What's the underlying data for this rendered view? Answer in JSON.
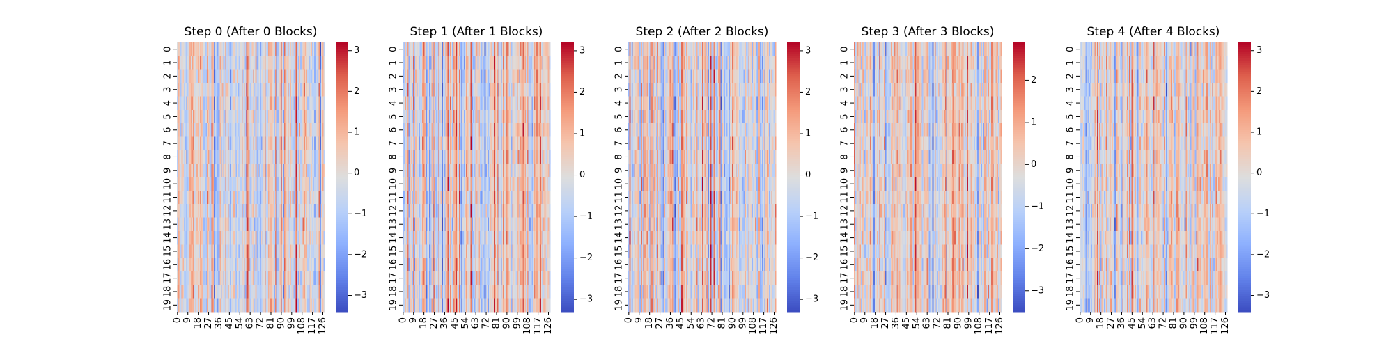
{
  "chart_data": [
    {
      "type": "heatmap",
      "title": "Step 0 (After 0 Blocks)",
      "rows": 20,
      "cols": 128,
      "y_ticklabels": [
        "0",
        "1",
        "2",
        "3",
        "4",
        "5",
        "6",
        "7",
        "8",
        "9",
        "10",
        "11",
        "12",
        "13",
        "14",
        "15",
        "16",
        "17",
        "18",
        "19"
      ],
      "x_ticklabels": [
        "0",
        "9",
        "18",
        "27",
        "36",
        "45",
        "54",
        "63",
        "72",
        "81",
        "90",
        "99",
        "108",
        "117",
        "126"
      ],
      "colormap": "coolwarm",
      "vmin": -3.4,
      "vmax": 3.2,
      "colorbar_ticks": [
        -3,
        -2,
        -1,
        0,
        1,
        2,
        3
      ],
      "colorbar_ticklabels": [
        "−3",
        "−2",
        "−1",
        "0",
        "1",
        "2",
        "3"
      ],
      "seed": 11
    },
    {
      "type": "heatmap",
      "title": "Step 1 (After 1 Blocks)",
      "rows": 20,
      "cols": 128,
      "y_ticklabels": [
        "0",
        "1",
        "2",
        "3",
        "4",
        "5",
        "6",
        "7",
        "8",
        "9",
        "10",
        "11",
        "12",
        "13",
        "14",
        "15",
        "16",
        "17",
        "18",
        "19"
      ],
      "x_ticklabels": [
        "0",
        "9",
        "18",
        "27",
        "36",
        "45",
        "54",
        "63",
        "72",
        "81",
        "90",
        "99",
        "108",
        "117",
        "126"
      ],
      "colormap": "coolwarm",
      "vmin": -3.3,
      "vmax": 3.2,
      "colorbar_ticks": [
        -3,
        -2,
        -1,
        0,
        1,
        2,
        3
      ],
      "colorbar_ticklabels": [
        "−3",
        "−2",
        "−1",
        "0",
        "1",
        "2",
        "3"
      ],
      "seed": 23
    },
    {
      "type": "heatmap",
      "title": "Step 2 (After 2 Blocks)",
      "rows": 20,
      "cols": 128,
      "y_ticklabels": [
        "0",
        "1",
        "2",
        "3",
        "4",
        "5",
        "6",
        "7",
        "8",
        "9",
        "10",
        "11",
        "12",
        "13",
        "14",
        "15",
        "16",
        "17",
        "18",
        "19"
      ],
      "x_ticklabels": [
        "0",
        "9",
        "18",
        "27",
        "36",
        "45",
        "54",
        "63",
        "72",
        "81",
        "90",
        "99",
        "108",
        "117",
        "126"
      ],
      "colormap": "coolwarm",
      "vmin": -3.3,
      "vmax": 3.2,
      "colorbar_ticks": [
        -3,
        -2,
        -1,
        0,
        1,
        2,
        3
      ],
      "colorbar_ticklabels": [
        "−3",
        "−2",
        "−1",
        "0",
        "1",
        "2",
        "3"
      ],
      "seed": 37
    },
    {
      "type": "heatmap",
      "title": "Step 3 (After 3 Blocks)",
      "rows": 20,
      "cols": 128,
      "y_ticklabels": [
        "0",
        "1",
        "2",
        "3",
        "4",
        "5",
        "6",
        "7",
        "8",
        "9",
        "10",
        "11",
        "12",
        "13",
        "14",
        "15",
        "16",
        "17",
        "18",
        "19"
      ],
      "x_ticklabels": [
        "0",
        "9",
        "18",
        "27",
        "36",
        "45",
        "54",
        "63",
        "72",
        "81",
        "90",
        "99",
        "108",
        "117",
        "126"
      ],
      "colormap": "coolwarm",
      "vmin": -3.5,
      "vmax": 2.9,
      "colorbar_ticks": [
        -3,
        -2,
        -1,
        0,
        1,
        2
      ],
      "colorbar_ticklabels": [
        "−3",
        "−2",
        "−1",
        "0",
        "1",
        "2"
      ],
      "seed": 53
    },
    {
      "type": "heatmap",
      "title": "Step 4 (After 4 Blocks)",
      "rows": 20,
      "cols": 128,
      "y_ticklabels": [
        "0",
        "1",
        "2",
        "3",
        "4",
        "5",
        "6",
        "7",
        "8",
        "9",
        "10",
        "11",
        "12",
        "13",
        "14",
        "15",
        "16",
        "17",
        "18",
        "19"
      ],
      "x_ticklabels": [
        "0",
        "9",
        "18",
        "27",
        "36",
        "45",
        "54",
        "63",
        "72",
        "81",
        "90",
        "99",
        "108",
        "117",
        "126"
      ],
      "colormap": "coolwarm",
      "vmin": -3.4,
      "vmax": 3.2,
      "colorbar_ticks": [
        -3,
        -2,
        -1,
        0,
        1,
        2,
        3
      ],
      "colorbar_ticklabels": [
        "−3",
        "−2",
        "−1",
        "0",
        "1",
        "2",
        "3"
      ],
      "seed": 71
    }
  ]
}
